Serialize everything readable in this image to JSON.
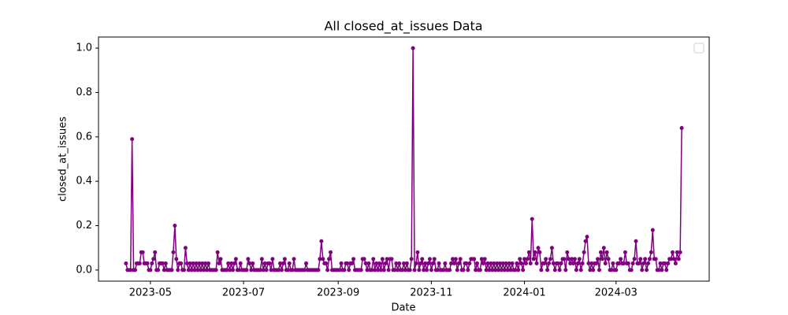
{
  "chart_data": {
    "type": "line",
    "title": "All closed_at_issues Data",
    "x_label": "Date",
    "y_label": "closed_at_issues",
    "legend": "upper right",
    "grid": false,
    "xlim": [
      "2023-03-28",
      "2024-05-01"
    ],
    "xticks": [
      {
        "value": "2023-05-01",
        "label": "2023-05"
      },
      {
        "value": "2023-07-01",
        "label": "2023-07"
      },
      {
        "value": "2023-09-01",
        "label": "2023-09"
      },
      {
        "value": "2023-11-01",
        "label": "2023-11"
      },
      {
        "value": "2024-01-01",
        "label": "2024-01"
      },
      {
        "value": "2024-03-01",
        "label": "2024-03"
      }
    ],
    "ylim": [
      -0.05,
      1.05
    ],
    "yticks": [
      {
        "value": 0,
        "label": "0.0"
      },
      0.2,
      0.4,
      0.6,
      0.8,
      {
        "value": 1,
        "label": "1.0"
      }
    ],
    "x": [
      "2023-04-15",
      "2023-04-16",
      "2023-04-17",
      "2023-04-18",
      "2023-04-19",
      "2023-04-20",
      "2023-04-21",
      "2023-04-22",
      "2023-04-23",
      "2023-04-24",
      "2023-04-25",
      "2023-04-26",
      "2023-04-27",
      "2023-04-28",
      "2023-04-29",
      "2023-04-30",
      "2023-05-01",
      "2023-05-02",
      "2023-05-03",
      "2023-05-04",
      "2023-05-05",
      "2023-05-06",
      "2023-05-07",
      "2023-05-08",
      "2023-05-09",
      "2023-05-10",
      "2023-05-11",
      "2023-05-12",
      "2023-05-13",
      "2023-05-14",
      "2023-05-15",
      "2023-05-16",
      "2023-05-17",
      "2023-05-18",
      "2023-05-19",
      "2023-05-20",
      "2023-05-21",
      "2023-05-22",
      "2023-05-23",
      "2023-05-24",
      "2023-05-25",
      "2023-05-26",
      "2023-05-27",
      "2023-05-28",
      "2023-05-29",
      "2023-05-30",
      "2023-05-31",
      "2023-06-01",
      "2023-06-02",
      "2023-06-03",
      "2023-06-04",
      "2023-06-05",
      "2023-06-06",
      "2023-06-07",
      "2023-06-08",
      "2023-06-09",
      "2023-06-10",
      "2023-06-11",
      "2023-06-12",
      "2023-06-13",
      "2023-06-14",
      "2023-06-15",
      "2023-06-16",
      "2023-06-17",
      "2023-06-18",
      "2023-06-19",
      "2023-06-20",
      "2023-06-21",
      "2023-06-22",
      "2023-06-23",
      "2023-06-24",
      "2023-06-25",
      "2023-06-26",
      "2023-06-27",
      "2023-06-28",
      "2023-06-29",
      "2023-06-30",
      "2023-07-01",
      "2023-07-02",
      "2023-07-03",
      "2023-07-04",
      "2023-07-05",
      "2023-07-06",
      "2023-07-07",
      "2023-07-08",
      "2023-07-09",
      "2023-07-10",
      "2023-07-11",
      "2023-07-12",
      "2023-07-13",
      "2023-07-14",
      "2023-07-15",
      "2023-07-16",
      "2023-07-17",
      "2023-07-18",
      "2023-07-19",
      "2023-07-20",
      "2023-07-21",
      "2023-07-22",
      "2023-07-23",
      "2023-07-24",
      "2023-07-25",
      "2023-07-26",
      "2023-07-27",
      "2023-07-28",
      "2023-07-29",
      "2023-07-30",
      "2023-07-31",
      "2023-08-01",
      "2023-08-02",
      "2023-08-03",
      "2023-08-04",
      "2023-08-05",
      "2023-08-06",
      "2023-08-07",
      "2023-08-08",
      "2023-08-09",
      "2023-08-10",
      "2023-08-11",
      "2023-08-12",
      "2023-08-13",
      "2023-08-14",
      "2023-08-15",
      "2023-08-16",
      "2023-08-17",
      "2023-08-18",
      "2023-08-19",
      "2023-08-20",
      "2023-08-21",
      "2023-08-22",
      "2023-08-23",
      "2023-08-24",
      "2023-08-25",
      "2023-08-26",
      "2023-08-27",
      "2023-08-28",
      "2023-08-29",
      "2023-08-30",
      "2023-08-31",
      "2023-09-01",
      "2023-09-02",
      "2023-09-03",
      "2023-09-04",
      "2023-09-05",
      "2023-09-06",
      "2023-09-07",
      "2023-09-08",
      "2023-09-09",
      "2023-09-10",
      "2023-09-11",
      "2023-09-12",
      "2023-09-13",
      "2023-09-14",
      "2023-09-15",
      "2023-09-16",
      "2023-09-17",
      "2023-09-18",
      "2023-09-19",
      "2023-09-20",
      "2023-09-21",
      "2023-09-22",
      "2023-09-23",
      "2023-09-24",
      "2023-09-25",
      "2023-09-26",
      "2023-09-27",
      "2023-09-28",
      "2023-09-29",
      "2023-09-30",
      "2023-10-01",
      "2023-10-02",
      "2023-10-03",
      "2023-10-04",
      "2023-10-05",
      "2023-10-06",
      "2023-10-07",
      "2023-10-08",
      "2023-10-09",
      "2023-10-10",
      "2023-10-11",
      "2023-10-12",
      "2023-10-13",
      "2023-10-14",
      "2023-10-15",
      "2023-10-16",
      "2023-10-17",
      "2023-10-18",
      "2023-10-19",
      "2023-10-20",
      "2023-10-21",
      "2023-10-22",
      "2023-10-23",
      "2023-10-24",
      "2023-10-25",
      "2023-10-26",
      "2023-10-27",
      "2023-10-28",
      "2023-10-29",
      "2023-10-30",
      "2023-10-31",
      "2023-11-01",
      "2023-11-02",
      "2023-11-03",
      "2023-11-04",
      "2023-11-05",
      "2023-11-06",
      "2023-11-07",
      "2023-11-08",
      "2023-11-09",
      "2023-11-10",
      "2023-11-11",
      "2023-11-12",
      "2023-11-13",
      "2023-11-14",
      "2023-11-15",
      "2023-11-16",
      "2023-11-17",
      "2023-11-18",
      "2023-11-19",
      "2023-11-20",
      "2023-11-21",
      "2023-11-22",
      "2023-11-23",
      "2023-11-24",
      "2023-11-25",
      "2023-11-26",
      "2023-11-27",
      "2023-11-28",
      "2023-11-29",
      "2023-11-30",
      "2023-12-01",
      "2023-12-02",
      "2023-12-03",
      "2023-12-04",
      "2023-12-05",
      "2023-12-06",
      "2023-12-07",
      "2023-12-08",
      "2023-12-09",
      "2023-12-10",
      "2023-12-11",
      "2023-12-12",
      "2023-12-13",
      "2023-12-14",
      "2023-12-15",
      "2023-12-16",
      "2023-12-17",
      "2023-12-18",
      "2023-12-19",
      "2023-12-20",
      "2023-12-21",
      "2023-12-22",
      "2023-12-23",
      "2023-12-24",
      "2023-12-25",
      "2023-12-26",
      "2023-12-27",
      "2023-12-28",
      "2023-12-29",
      "2023-12-30",
      "2023-12-31",
      "2024-01-01",
      "2024-01-02",
      "2024-01-03",
      "2024-01-04",
      "2024-01-05",
      "2024-01-06",
      "2024-01-07",
      "2024-01-08",
      "2024-01-09",
      "2024-01-10",
      "2024-01-11",
      "2024-01-12",
      "2024-01-13",
      "2024-01-14",
      "2024-01-15",
      "2024-01-16",
      "2024-01-17",
      "2024-01-18",
      "2024-01-19",
      "2024-01-20",
      "2024-01-21",
      "2024-01-22",
      "2024-01-23",
      "2024-01-24",
      "2024-01-25",
      "2024-01-26",
      "2024-01-27",
      "2024-01-28",
      "2024-01-29",
      "2024-01-30",
      "2024-01-31",
      "2024-02-01",
      "2024-02-02",
      "2024-02-03",
      "2024-02-04",
      "2024-02-05",
      "2024-02-06",
      "2024-02-07",
      "2024-02-08",
      "2024-02-09",
      "2024-02-10",
      "2024-02-11",
      "2024-02-12",
      "2024-02-13",
      "2024-02-14",
      "2024-02-15",
      "2024-02-16",
      "2024-02-17",
      "2024-02-18",
      "2024-02-19",
      "2024-02-20",
      "2024-02-21",
      "2024-02-22",
      "2024-02-23",
      "2024-02-24",
      "2024-02-25",
      "2024-02-26",
      "2024-02-27",
      "2024-02-28",
      "2024-02-29",
      "2024-03-01",
      "2024-03-02",
      "2024-03-03",
      "2024-03-04",
      "2024-03-05",
      "2024-03-06",
      "2024-03-07",
      "2024-03-08",
      "2024-03-09",
      "2024-03-10",
      "2024-03-11",
      "2024-03-12",
      "2024-03-13",
      "2024-03-14",
      "2024-03-15",
      "2024-03-16",
      "2024-03-17",
      "2024-03-18",
      "2024-03-19",
      "2024-03-20",
      "2024-03-21",
      "2024-03-22",
      "2024-03-23",
      "2024-03-24",
      "2024-03-25",
      "2024-03-26",
      "2024-03-27",
      "2024-03-28",
      "2024-03-29",
      "2024-03-30",
      "2024-03-31",
      "2024-04-01",
      "2024-04-02",
      "2024-04-03",
      "2024-04-04",
      "2024-04-05",
      "2024-04-06",
      "2024-04-07",
      "2024-04-08",
      "2024-04-09",
      "2024-04-10",
      "2024-04-11",
      "2024-04-12",
      "2024-04-13"
    ],
    "series": [
      {
        "color": "purple",
        "values": [
          0.03,
          0,
          0,
          0,
          0.59,
          0,
          0,
          0.03,
          0.03,
          0.03,
          0.08,
          0.08,
          0.03,
          0.03,
          0.03,
          0,
          0,
          0.03,
          0.05,
          0.08,
          0,
          0,
          0.03,
          0.03,
          0.03,
          0,
          0.03,
          0,
          0,
          0,
          0,
          0.08,
          0.2,
          0.05,
          0,
          0.03,
          0.03,
          0,
          0,
          0.1,
          0.03,
          0,
          0.03,
          0,
          0.03,
          0,
          0.03,
          0,
          0.03,
          0,
          0.03,
          0,
          0.03,
          0,
          0.03,
          0,
          0,
          0,
          0,
          0,
          0.08,
          0.03,
          0.05,
          0,
          0,
          0,
          0,
          0.03,
          0,
          0.03,
          0,
          0.03,
          0.05,
          0,
          0,
          0.03,
          0,
          0,
          0,
          0,
          0.05,
          0.03,
          0,
          0.03,
          0,
          0,
          0,
          0,
          0,
          0.05,
          0,
          0.03,
          0,
          0.03,
          0.03,
          0,
          0.05,
          0,
          0,
          0,
          0,
          0.03,
          0,
          0.03,
          0.05,
          0,
          0,
          0.03,
          0,
          0,
          0.05,
          0,
          0,
          0,
          0,
          0,
          0,
          0,
          0.03,
          0,
          0,
          0,
          0,
          0,
          0,
          0,
          0,
          0.05,
          0.13,
          0.05,
          0.03,
          0.03,
          0,
          0.05,
          0.08,
          0,
          0,
          0,
          0,
          0,
          0,
          0.03,
          0,
          0,
          0.03,
          0.03,
          0,
          0.03,
          0.03,
          0.05,
          0,
          0,
          0,
          0,
          0,
          0.05,
          0.05,
          0.03,
          0,
          0.03,
          0,
          0,
          0.05,
          0,
          0.03,
          0,
          0.03,
          0,
          0.05,
          0,
          0.03,
          0.05,
          0,
          0.05,
          0.05,
          0,
          0,
          0.03,
          0,
          0.03,
          0,
          0,
          0.03,
          0,
          0.03,
          0,
          0,
          0.05,
          1.0,
          0,
          0.03,
          0.08,
          0,
          0.03,
          0.05,
          0,
          0.03,
          0,
          0.03,
          0.05,
          0,
          0.03,
          0.05,
          0,
          0,
          0.03,
          0,
          0,
          0,
          0.03,
          0,
          0,
          0,
          0.03,
          0.05,
          0.03,
          0.05,
          0,
          0.03,
          0.05,
          0,
          0,
          0.03,
          0.03,
          0,
          0.03,
          0.05,
          0.05,
          0.05,
          0,
          0.03,
          0,
          0,
          0.05,
          0.03,
          0.05,
          0,
          0.03,
          0,
          0.03,
          0,
          0.03,
          0,
          0.03,
          0,
          0.03,
          0,
          0.03,
          0,
          0.03,
          0,
          0.03,
          0,
          0.03,
          0,
          0,
          0.03,
          0,
          0.05,
          0.03,
          0,
          0.05,
          0.03,
          0.05,
          0.08,
          0.03,
          0.23,
          0.05,
          0.08,
          0.03,
          0.1,
          0.08,
          0,
          0.03,
          0.03,
          0.05,
          0,
          0.03,
          0.05,
          0.1,
          0.03,
          0,
          0.03,
          0.03,
          0,
          0.03,
          0.05,
          0.05,
          0,
          0.08,
          0.05,
          0.03,
          0.05,
          0.03,
          0.05,
          0,
          0.03,
          0.05,
          0,
          0.03,
          0.08,
          0.13,
          0.15,
          0.03,
          0,
          0.03,
          0,
          0.03,
          0.03,
          0.05,
          0,
          0.08,
          0.05,
          0.1,
          0.03,
          0.08,
          0.05,
          0,
          0,
          0.03,
          0,
          0,
          0.03,
          0.03,
          0.05,
          0.03,
          0.03,
          0.08,
          0.03,
          0.03,
          0,
          0,
          0.03,
          0.05,
          0.13,
          0.03,
          0.03,
          0.05,
          0,
          0.03,
          0.05,
          0,
          0.03,
          0.05,
          0.08,
          0.18,
          0.05,
          0.05,
          0,
          0,
          0.03,
          0,
          0.03,
          0.03,
          0,
          0.03,
          0.05,
          0.05,
          0.08,
          0.05,
          0.03,
          0.08,
          0.05,
          0.08,
          0.64
        ]
      }
    ]
  }
}
